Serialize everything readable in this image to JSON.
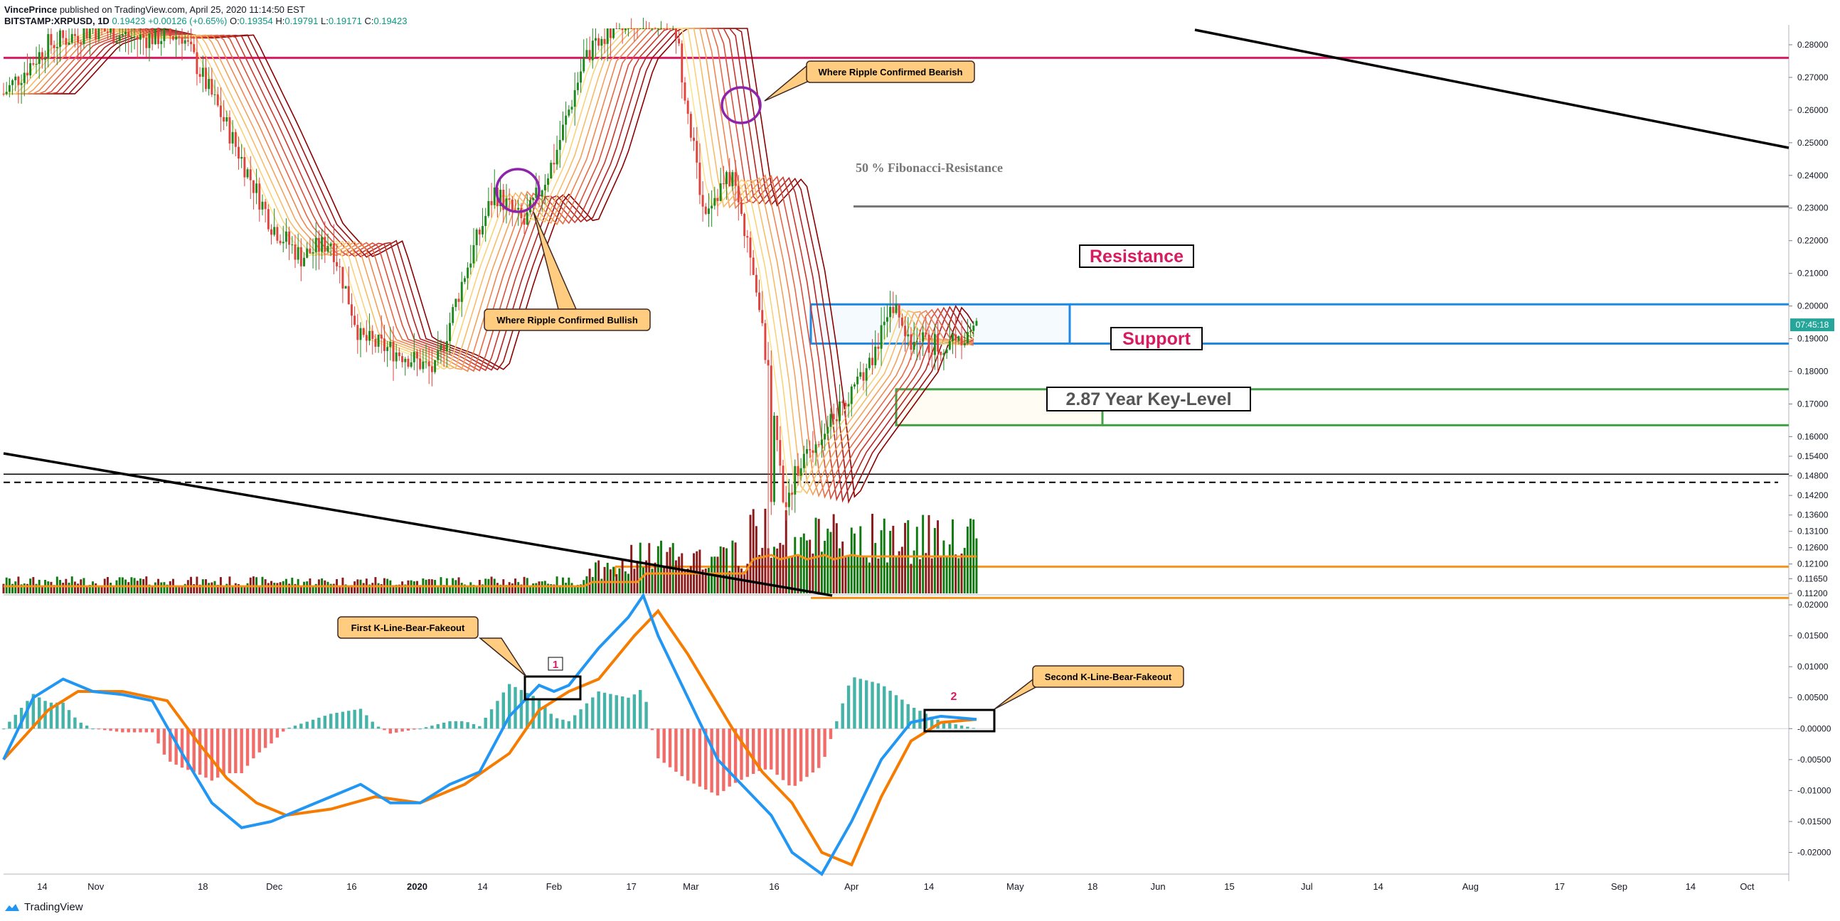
{
  "header": {
    "author": "VincePrince",
    "published": "published on TradingView.com, April 25, 2020 11:14:50 EST",
    "symbol": "BITSTAMP:XRPUSD, 1D",
    "price": "0.19423",
    "change": "+0.00126 (+0.65%)",
    "open": "0.19354",
    "high": "0.19791",
    "low": "0.19171",
    "close": "0.19423"
  },
  "footer": {
    "brand": "TradingView"
  },
  "colors": {
    "up": "#1e8a1e",
    "down": "#e0433c",
    "volUp": "#0f7a0f",
    "volDown": "#8b1a1a",
    "resistance": "#1e88e5",
    "support": "#43a047",
    "keyLine": "#000000",
    "fibLine": "#777777",
    "redLine": "#d81b60",
    "orangeLine": "#f7931a",
    "macd": "#2196f3",
    "signal": "#f57c00",
    "histUp": "#26a69a",
    "histDown": "#ef5350"
  },
  "chart_data": {
    "type": "candlestick",
    "price_axis": {
      "ylim": [
        0.112,
        0.285
      ],
      "ticks": [
        "0.28000",
        "0.27000",
        "0.26000",
        "0.25000",
        "0.24000",
        "0.23000",
        "0.22000",
        "0.21000",
        "0.20000",
        "0.19000",
        "0.18000",
        "0.17000",
        "0.16000",
        "0.15400",
        "0.14800",
        "0.14200",
        "0.13600",
        "0.13100",
        "0.12600",
        "0.12100",
        "0.11650",
        "0.11200"
      ],
      "tick_values": [
        0.28,
        0.27,
        0.26,
        0.25,
        0.24,
        0.23,
        0.22,
        0.21,
        0.2,
        0.19,
        0.18,
        0.17,
        0.16,
        0.154,
        0.148,
        0.142,
        0.136,
        0.131,
        0.126,
        0.121,
        0.1165,
        0.112
      ],
      "current_label": "07:45:18",
      "current_value": 0.19423
    },
    "macd_axis": {
      "ylim": [
        -0.0235,
        0.0215
      ],
      "ticks": [
        "0.02000",
        "0.01500",
        "0.01000",
        "0.00500",
        "-0.00000",
        "-0.00500",
        "-0.01000",
        "-0.01500",
        "-0.02000"
      ],
      "tick_values": [
        0.02,
        0.015,
        0.01,
        0.005,
        0,
        -0.005,
        -0.01,
        -0.015,
        -0.02
      ]
    },
    "x_axis": {
      "labels": [
        "14",
        "Nov",
        "18",
        "Dec",
        "16",
        "2020",
        "14",
        "Feb",
        "17",
        "Mar",
        "16",
        "Apr",
        "14",
        "May",
        "18",
        "Jun",
        "15",
        "Jul",
        "14",
        "Aug",
        "17",
        "Sep",
        "14",
        "Oct"
      ],
      "label_days": [
        13,
        31,
        67,
        91,
        117,
        139,
        161,
        185,
        211,
        231,
        259,
        285,
        311,
        340,
        366,
        388,
        412,
        438,
        462,
        493,
        523,
        543,
        567,
        586
      ],
      "bold": [
        "2020"
      ]
    },
    "candles_approx": {
      "days_range": [
        0,
        327
      ],
      "price_path": [
        [
          0,
          0.265
        ],
        [
          15,
          0.28
        ],
        [
          30,
          0.285
        ],
        [
          45,
          0.282
        ],
        [
          60,
          0.283
        ],
        [
          75,
          0.255
        ],
        [
          90,
          0.225
        ],
        [
          100,
          0.215
        ],
        [
          110,
          0.22
        ],
        [
          120,
          0.19
        ],
        [
          135,
          0.185
        ],
        [
          145,
          0.18
        ],
        [
          155,
          0.21
        ],
        [
          165,
          0.235
        ],
        [
          175,
          0.225
        ],
        [
          185,
          0.245
        ],
        [
          195,
          0.275
        ],
        [
          210,
          0.29
        ],
        [
          225,
          0.29
        ],
        [
          235,
          0.23
        ],
        [
          245,
          0.24
        ],
        [
          252,
          0.21
        ],
        [
          257,
          0.18
        ],
        [
          262,
          0.14
        ],
        [
          270,
          0.155
        ],
        [
          282,
          0.17
        ],
        [
          290,
          0.18
        ],
        [
          298,
          0.2
        ],
        [
          305,
          0.19
        ],
        [
          315,
          0.188
        ],
        [
          327,
          0.194
        ]
      ]
    },
    "levels": {
      "red_line": 0.276,
      "fib_50": 0.2305,
      "resistance_top": 0.2005,
      "resistance_bottom": 0.1885,
      "support_top": 0.1745,
      "support_bottom": 0.1635,
      "key_level_solid": 0.1485,
      "key_level_dashed": 0.146,
      "orange_upper": 0.1202,
      "orange_lower": 0.1128
    },
    "annotations": {
      "resistance": "Resistance",
      "support": "Support",
      "key_level": "2.87 Year Key-Level",
      "fib": "50 % Fibonacci-Resistance",
      "bull": "Where Ripple Confirmed Bullish",
      "bear": "Where Ripple Confirmed Bearish",
      "first_fake": "First K-Line-Bear-Fakeout",
      "second_fake": "Second K-Line-Bear-Fakeout",
      "box1": "1",
      "box2": "2"
    },
    "macd_path": [
      [
        0,
        -0.005
      ],
      [
        10,
        0.005
      ],
      [
        20,
        0.008
      ],
      [
        30,
        0.006
      ],
      [
        40,
        0.0055
      ],
      [
        50,
        0.0045
      ],
      [
        60,
        -0.004
      ],
      [
        70,
        -0.012
      ],
      [
        80,
        -0.016
      ],
      [
        90,
        -0.015
      ],
      [
        100,
        -0.013
      ],
      [
        110,
        -0.011
      ],
      [
        120,
        -0.009
      ],
      [
        130,
        -0.012
      ],
      [
        140,
        -0.012
      ],
      [
        150,
        -0.009
      ],
      [
        160,
        -0.007
      ],
      [
        170,
        0.002
      ],
      [
        180,
        0.007
      ],
      [
        185,
        0.006
      ],
      [
        190,
        0.007
      ],
      [
        200,
        0.013
      ],
      [
        210,
        0.018
      ],
      [
        215,
        0.022
      ],
      [
        220,
        0.015
      ],
      [
        230,
        0.005
      ],
      [
        240,
        -0.005
      ],
      [
        250,
        -0.01
      ],
      [
        258,
        -0.014
      ],
      [
        265,
        -0.02
      ],
      [
        275,
        -0.025
      ],
      [
        285,
        -0.015
      ],
      [
        295,
        -0.005
      ],
      [
        305,
        0.001
      ],
      [
        315,
        0.002
      ],
      [
        327,
        0.0015
      ]
    ],
    "signal_path": [
      [
        0,
        -0.005
      ],
      [
        15,
        0.003
      ],
      [
        25,
        0.006
      ],
      [
        40,
        0.006
      ],
      [
        55,
        0.0045
      ],
      [
        65,
        -0.002
      ],
      [
        75,
        -0.008
      ],
      [
        85,
        -0.012
      ],
      [
        95,
        -0.014
      ],
      [
        110,
        -0.013
      ],
      [
        125,
        -0.011
      ],
      [
        140,
        -0.012
      ],
      [
        155,
        -0.009
      ],
      [
        170,
        -0.004
      ],
      [
        180,
        0.003
      ],
      [
        190,
        0.006
      ],
      [
        200,
        0.008
      ],
      [
        212,
        0.015
      ],
      [
        220,
        0.019
      ],
      [
        230,
        0.012
      ],
      [
        245,
        0.0
      ],
      [
        255,
        -0.007
      ],
      [
        265,
        -0.012
      ],
      [
        275,
        -0.02
      ],
      [
        285,
        -0.022
      ],
      [
        295,
        -0.011
      ],
      [
        305,
        -0.002
      ],
      [
        315,
        0.001
      ],
      [
        327,
        0.0015
      ]
    ],
    "ma_ribbon": true,
    "volume_max": 0.0
  }
}
